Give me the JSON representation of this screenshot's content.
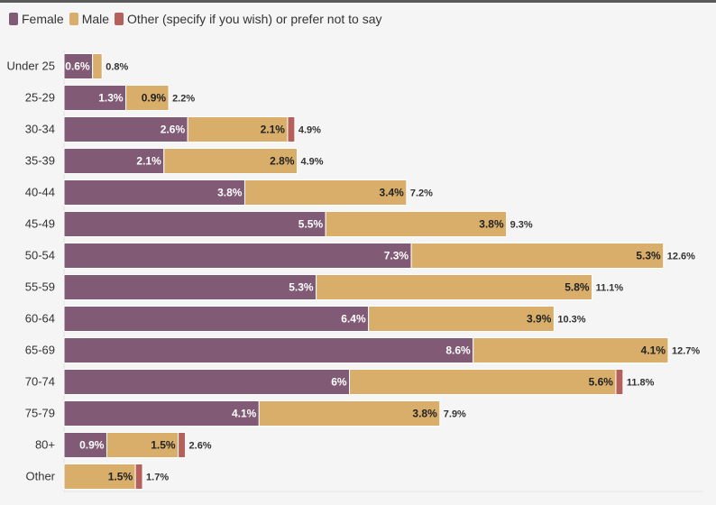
{
  "colors": {
    "female": "#815b76",
    "male": "#d8ae6a",
    "other": "#b5605a"
  },
  "legend": [
    {
      "key": "female",
      "label": "Female"
    },
    {
      "key": "male",
      "label": "Male"
    },
    {
      "key": "other",
      "label": "Other (specify if you wish) or prefer not to say"
    }
  ],
  "chart_data": {
    "type": "bar",
    "orientation": "horizontal",
    "stacked": true,
    "categories": [
      "Under 25",
      "25-29",
      "30-34",
      "35-39",
      "40-44",
      "45-49",
      "50-54",
      "55-59",
      "60-64",
      "65-69",
      "70-74",
      "75-79",
      "80+",
      "Other"
    ],
    "series": [
      {
        "name": "Female",
        "key": "female",
        "values": [
          0.6,
          1.3,
          2.6,
          2.1,
          3.8,
          5.5,
          7.3,
          5.3,
          6.4,
          8.6,
          6,
          4.1,
          0.9,
          0
        ],
        "labels": [
          "0.6%",
          "1.3%",
          "2.6%",
          "2.1%",
          "3.8%",
          "5.5%",
          "7.3%",
          "5.3%",
          "6.4%",
          "8.6%",
          "6%",
          "4.1%",
          "0.9%",
          ""
        ]
      },
      {
        "name": "Male",
        "key": "male",
        "values": [
          0.2,
          0.9,
          2.1,
          2.8,
          3.4,
          3.8,
          5.3,
          5.8,
          3.9,
          4.1,
          5.6,
          3.8,
          1.5,
          1.5
        ],
        "labels": [
          "",
          "0.9%",
          "2.1%",
          "2.8%",
          "3.4%",
          "3.8%",
          "5.3%",
          "5.8%",
          "3.9%",
          "4.1%",
          "5.6%",
          "3.8%",
          "1.5%",
          "1.5%"
        ]
      },
      {
        "name": "Other (specify if you wish) or prefer not to say",
        "key": "other",
        "values": [
          0,
          0,
          0.15,
          0,
          0,
          0,
          0,
          0,
          0,
          0,
          0.15,
          0,
          0.15,
          0.15
        ],
        "labels": [
          "",
          "",
          "",
          "",
          "",
          "",
          "",
          "",
          "",
          "",
          "",
          "",
          "",
          ""
        ]
      }
    ],
    "totals": [
      "0.8%",
      "2.2%",
      "4.9%",
      "4.9%",
      "7.2%",
      "9.3%",
      "12.6%",
      "11.1%",
      "10.3%",
      "12.7%",
      "11.8%",
      "7.9%",
      "2.6%",
      "1.7%"
    ],
    "xlim": [
      0,
      12.7
    ],
    "grid": false,
    "legend_position": "top-left"
  }
}
